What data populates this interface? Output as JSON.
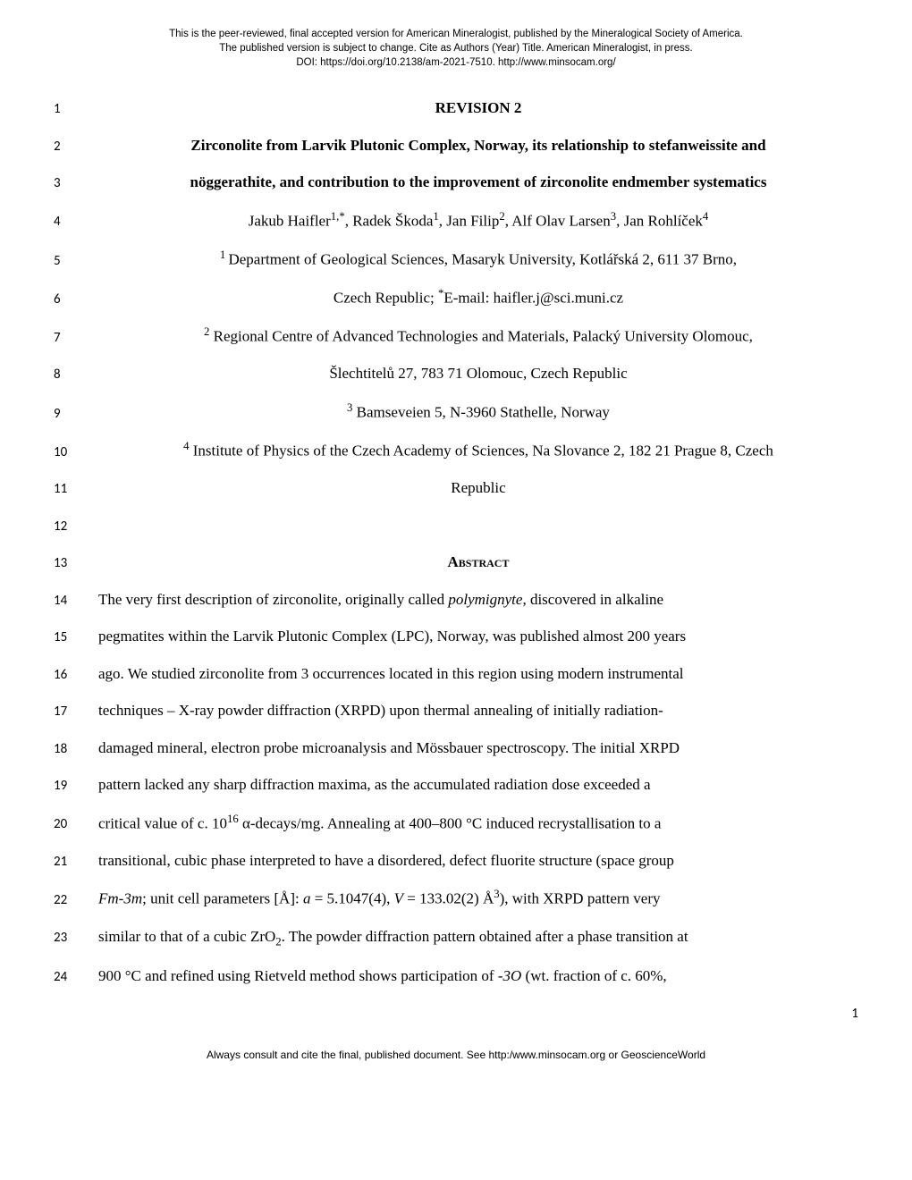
{
  "header": {
    "line1": "This is the peer-reviewed, final accepted version for American Mineralogist, published by the Mineralogical Society of America.",
    "line2": "The published version is subject to change. Cite as Authors (Year) Title. American Mineralogist, in press.",
    "line3": "DOI: https://doi.org/10.2138/am-2021-7510.  http://www.minsocam.org/"
  },
  "lines": {
    "l1": "REVISION 2",
    "l2": "Zirconolite from Larvik Plutonic Complex, Norway, its relationship to stefanweissite and",
    "l3": "nöggerathite, and contribution to the improvement of zirconolite endmember systematics",
    "l4_pre": "Jakub Haifler",
    "l4_sup1": "1,*",
    "l4_a": ", Radek Škoda",
    "l4_sup2": "1",
    "l4_b": ", Jan Filip",
    "l4_sup3": "2",
    "l4_c": ", Alf Olav Larsen",
    "l4_sup4": "3",
    "l4_d": ", Jan Rohlíček",
    "l4_sup5": "4",
    "l5_sup": "1 ",
    "l5": "Department of Geological Sciences, Masaryk University, Kotlářská 2, 611 37 Brno,",
    "l6_a": "Czech Republic; ",
    "l6_sup": "*",
    "l6_b": "E-mail: haifler.j@sci.muni.cz",
    "l7_sup": "2",
    "l7": " Regional Centre of Advanced Technologies and Materials, Palacký University Olomouc,",
    "l8": "Šlechtitelů 27, 783 71 Olomouc, Czech Republic",
    "l9_sup": "3",
    "l9": " Bamseveien 5, N-3960 Stathelle, Norway",
    "l10_sup": "4",
    "l10": " Institute of Physics of the Czech Academy of Sciences, Na Slovance 2, 182 21 Prague 8, Czech",
    "l11": "Republic",
    "l13": "Abstract",
    "l14a": "The very first description of zirconolite, originally called ",
    "l14b": "polymignyte",
    "l14c": ", discovered in alkaline",
    "l15": "pegmatites within the Larvik Plutonic Complex (LPC), Norway, was published almost 200 years",
    "l16": "ago. We studied zirconolite from 3 occurrences located in this region using modern instrumental",
    "l17": "techniques – X-ray powder diffraction (XRPD) upon thermal annealing of initially radiation-",
    "l18": "damaged mineral, electron probe microanalysis and Mössbauer spectroscopy. The initial XRPD",
    "l19": "pattern lacked any sharp diffraction maxima, as the accumulated radiation dose exceeded a",
    "l20a": "critical value of c. 10",
    "l20sup": "16",
    "l20b": " α-decays/mg. Annealing at 400–800 °C induced recrystallisation to a",
    "l21": "transitional, cubic phase interpreted to have a disordered, defect fluorite structure (space group",
    "l22a": "Fm-3m",
    "l22b": "; unit cell parameters [Å]: ",
    "l22c": "a",
    "l22d": " = 5.1047(4), ",
    "l22e": "V",
    "l22f": " = 133.02(2) Å",
    "l22sup": "3",
    "l22g": "), with XRPD pattern very",
    "l23a": "similar to that of a cubic ZrO",
    "l23sub": "2",
    "l23b": ". The powder diffraction pattern obtained after a phase transition at",
    "l24a": "900 °C and refined using Rietveld method shows participation of ",
    "l24b": "-3O",
    "l24c": " (wt. fraction of c. 60%,"
  },
  "lineNumbers": {
    "n1": "1",
    "n2": "2",
    "n3": "3",
    "n4": "4",
    "n5": "5",
    "n6": "6",
    "n7": "7",
    "n8": "8",
    "n9": "9",
    "n10": "10",
    "n11": "11",
    "n12": "12",
    "n13": "13",
    "n14": "14",
    "n15": "15",
    "n16": "16",
    "n17": "17",
    "n18": "18",
    "n19": "19",
    "n20": "20",
    "n21": "21",
    "n22": "22",
    "n23": "23",
    "n24": "24"
  },
  "pageNumber": "1",
  "footer": "Always consult and cite the final, published document. See http:/www.minsocam.org or GeoscienceWorld"
}
